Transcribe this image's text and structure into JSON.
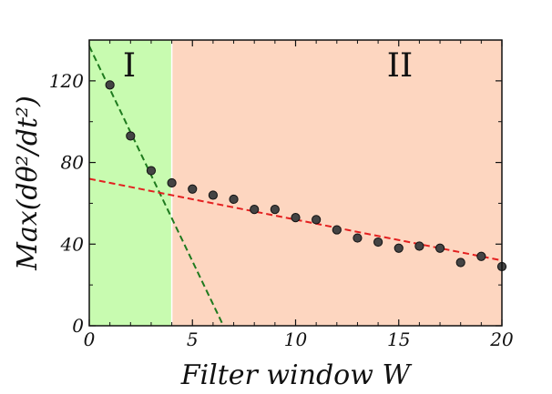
{
  "chart_data": {
    "type": "scatter",
    "xlabel": "Filter window W",
    "ylabel": "Max(dθ²/dt²)",
    "xlim": [
      0,
      20
    ],
    "ylim": [
      0,
      140
    ],
    "xticks": [
      0,
      5,
      10,
      15,
      20
    ],
    "yticks": [
      0,
      40,
      80,
      120
    ],
    "x_tick_labels": [
      "0",
      "5",
      "10",
      "15",
      "20"
    ],
    "y_tick_labels": [
      "0",
      "40",
      "80",
      "120"
    ],
    "grid": false,
    "regions": [
      {
        "label": "I",
        "x_start": 0,
        "x_end": 4,
        "color": "#c8fbb0"
      },
      {
        "label": "II",
        "x_start": 4,
        "x_end": 20,
        "color": "#fdd6c0"
      }
    ],
    "series": [
      {
        "type": "scatter",
        "x": [
          1,
          2,
          3,
          4,
          5,
          6,
          7,
          8,
          9,
          10,
          11,
          12,
          13,
          14,
          15,
          16,
          17,
          18,
          19,
          20
        ],
        "y": [
          118,
          93,
          76,
          70,
          67,
          64,
          62,
          57,
          57,
          53,
          52,
          47,
          43,
          41,
          38,
          39,
          38,
          31,
          34,
          29
        ],
        "color": "#444444"
      }
    ],
    "fit_lines": [
      {
        "x": [
          0,
          6.5
        ],
        "y": [
          137,
          0
        ],
        "color": "#1e7a1e",
        "style": "dashed"
      },
      {
        "x": [
          0,
          20
        ],
        "y": [
          72,
          32
        ],
        "color": "#e32020",
        "style": "dashed"
      }
    ]
  }
}
